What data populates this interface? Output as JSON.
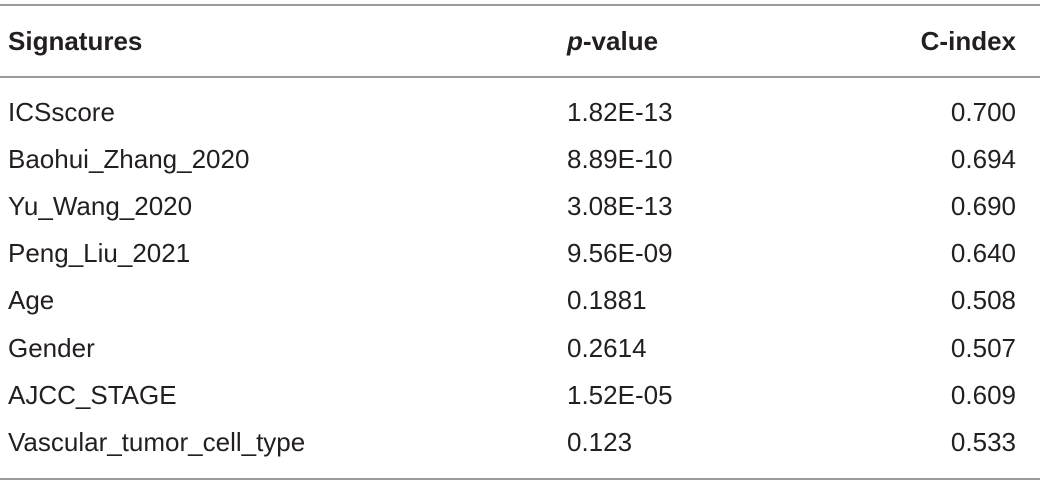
{
  "table": {
    "header": [
      "Signatures",
      "p-value",
      "C-index"
    ],
    "rows": [
      [
        "ICSscore",
        "1.82E-13",
        "0.700"
      ],
      [
        "Baohui_Zhang_2020",
        "8.89E-10",
        "0.694"
      ],
      [
        "Yu_Wang_2020",
        "3.08E-13",
        "0.690"
      ],
      [
        "Peng_Liu_2021",
        "9.56E-09",
        "0.640"
      ],
      [
        "Age",
        "0.1881",
        "0.508"
      ],
      [
        "Gender",
        "0.2614",
        "0.507"
      ],
      [
        "AJCC_STAGE",
        "1.52E-05",
        "0.609"
      ],
      [
        "Vascular_tumor_cell_type",
        "0.123",
        "0.533"
      ]
    ]
  }
}
